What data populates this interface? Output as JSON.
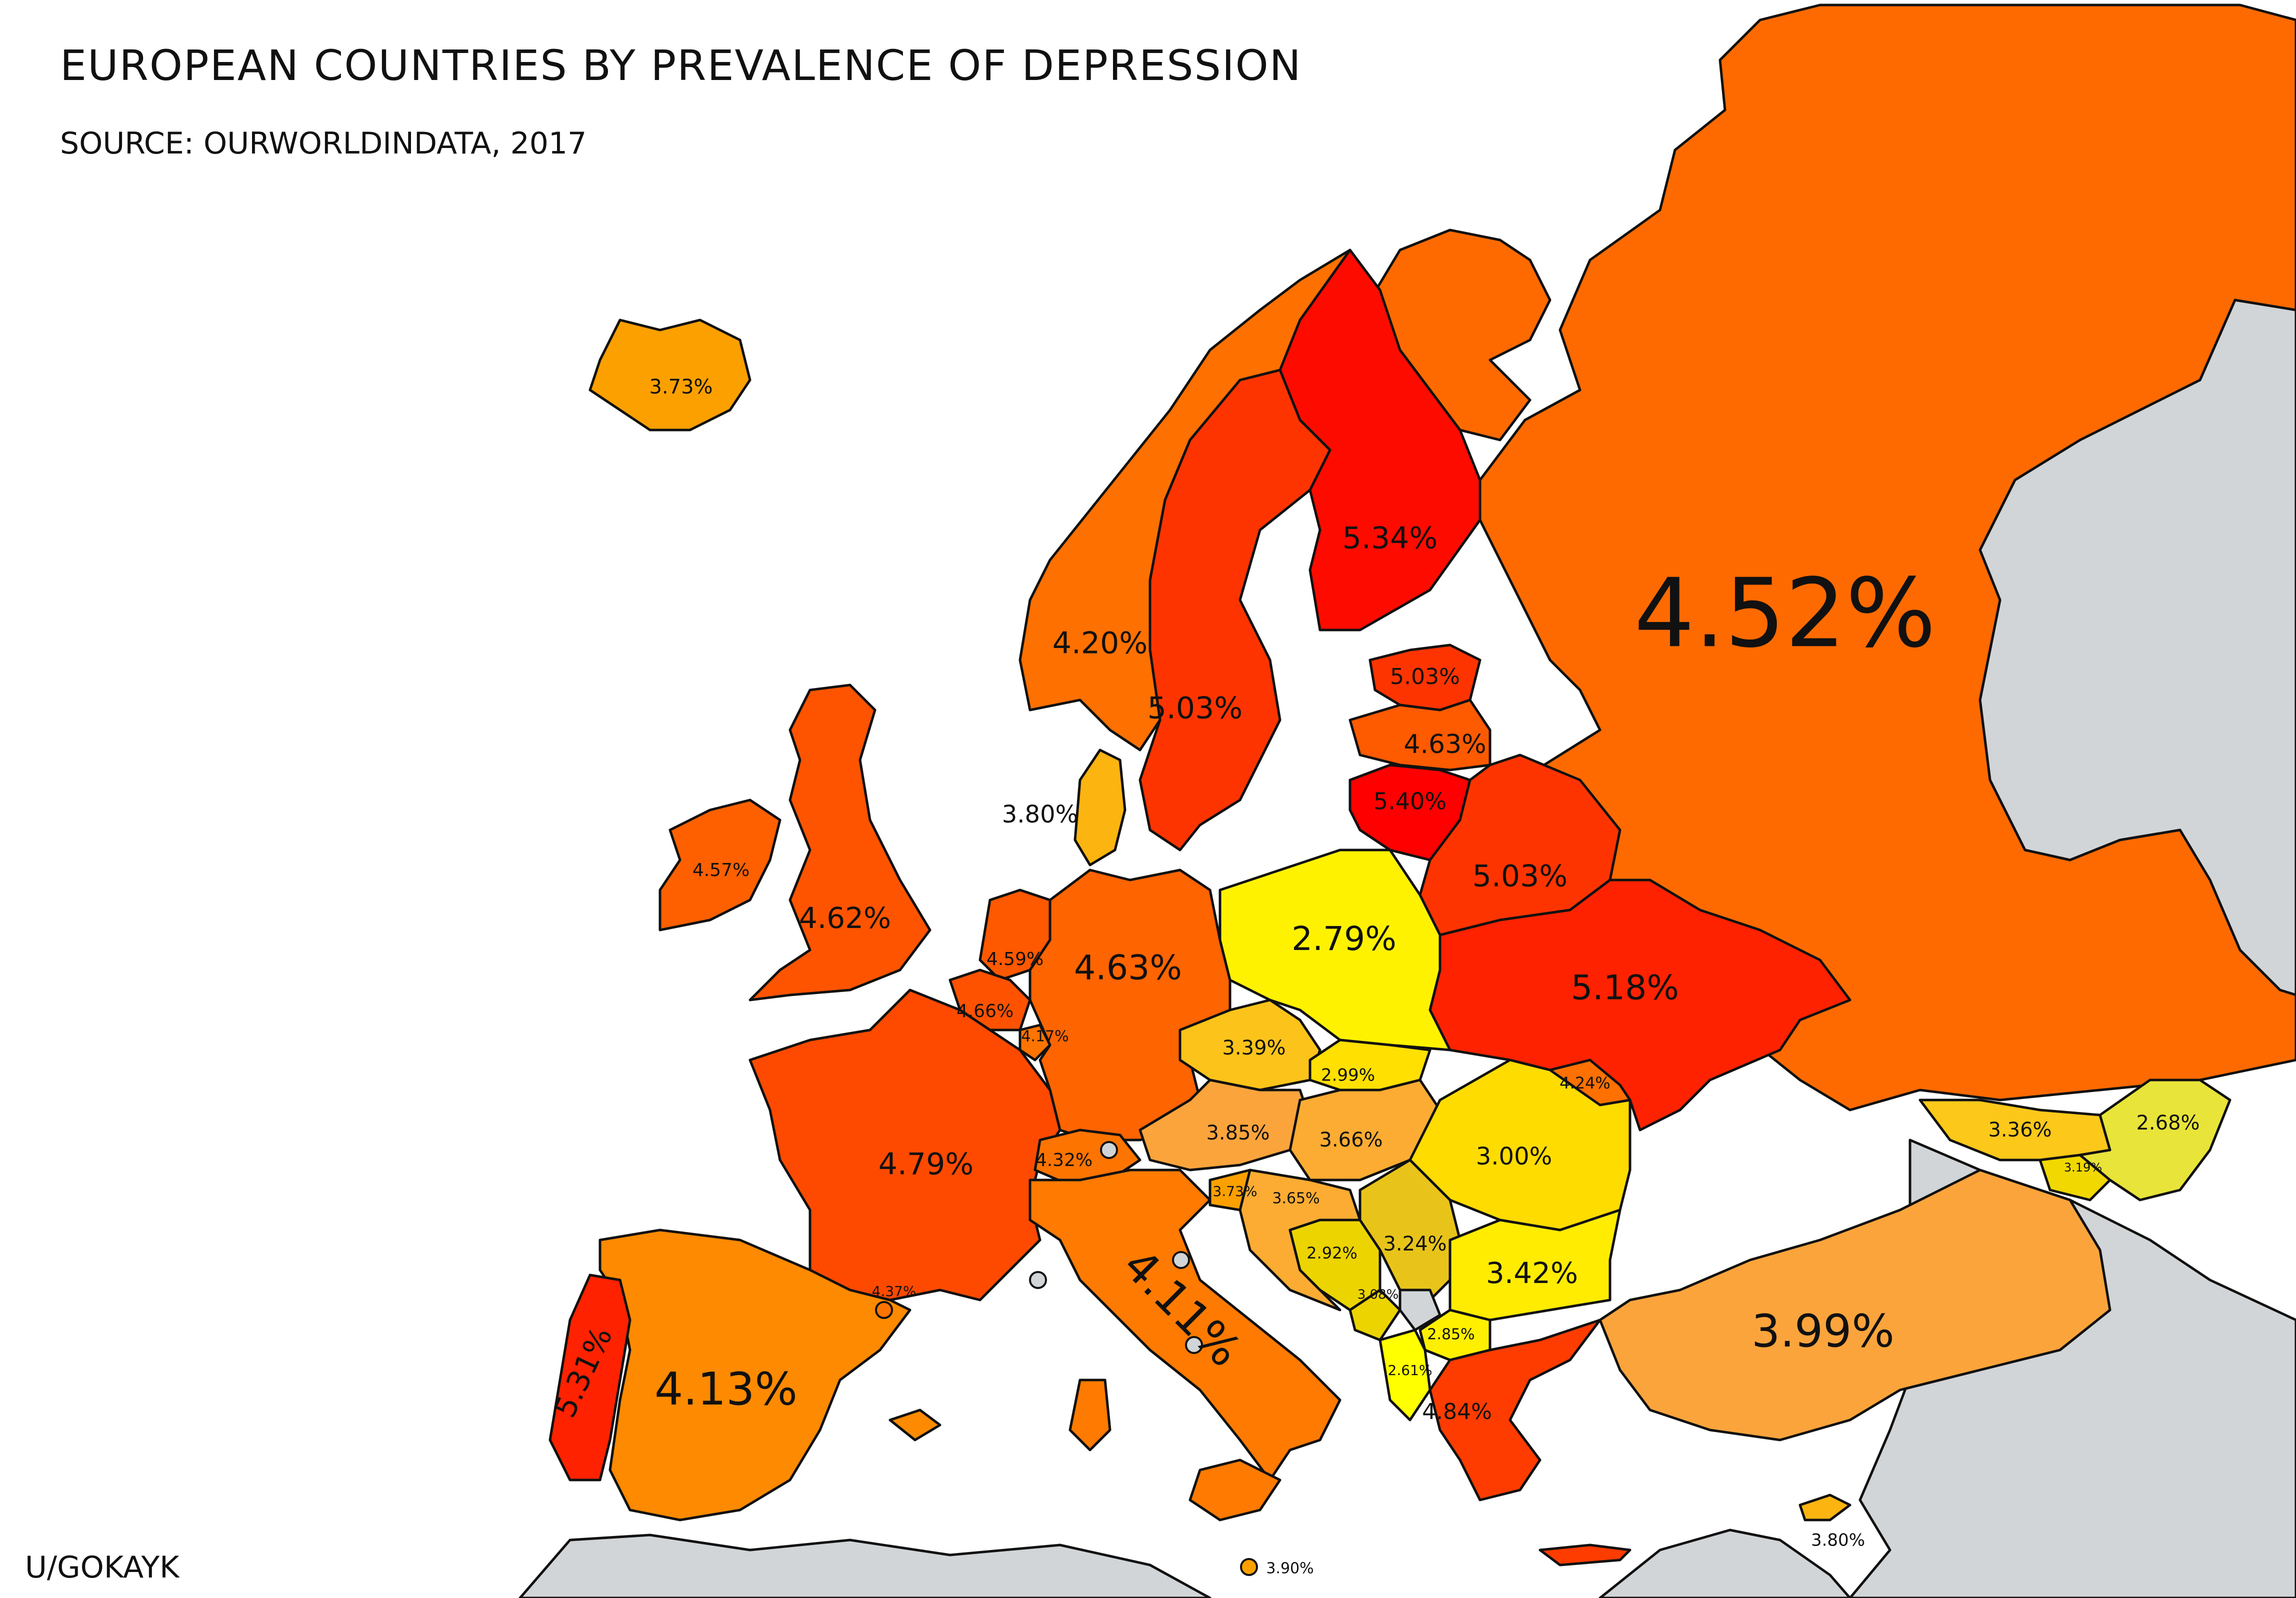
{
  "title": "EUROPEAN COUNTRIES BY PREVALENCE OF DEPRESSION",
  "subtitle": "SOURCE: OURWORLDINDATA, 2017",
  "credit": "U/GOKAYK",
  "colors": {
    "background": "#ffffff",
    "no_data": "#d1d5d8",
    "border": "#111111",
    "scale": [
      "#ffff00",
      "#ffe000",
      "#fdc41a",
      "#fca43c",
      "#fd8a00",
      "#fe6a00",
      "#fe4a00",
      "#fe2a00",
      "#fe0000"
    ]
  },
  "countries": [
    {
      "id": "russia",
      "name": "Russia",
      "value": "4.52%",
      "color": "#fe6a00"
    },
    {
      "id": "finland",
      "name": "Finland",
      "value": "5.34%",
      "color": "#fe0b00"
    },
    {
      "id": "sweden",
      "name": "Sweden",
      "value": "5.03%",
      "color": "#fe3400"
    },
    {
      "id": "norway",
      "name": "Norway",
      "value": "4.20%",
      "color": "#fe7000"
    },
    {
      "id": "iceland",
      "name": "Iceland",
      "value": "3.73%",
      "color": "#fca000"
    },
    {
      "id": "estonia",
      "name": "Estonia",
      "value": "5.03%",
      "color": "#fe3400"
    },
    {
      "id": "latvia",
      "name": "Latvia",
      "value": "4.63%",
      "color": "#fe5a00"
    },
    {
      "id": "lithuania",
      "name": "Lithuania",
      "value": "5.40%",
      "color": "#fe0000"
    },
    {
      "id": "belarus",
      "name": "Belarus",
      "value": "5.03%",
      "color": "#fe3400"
    },
    {
      "id": "ukraine",
      "name": "Ukraine",
      "value": "5.18%",
      "color": "#fe2200"
    },
    {
      "id": "denmark",
      "name": "Denmark",
      "value": "3.80%",
      "color": "#fcb410"
    },
    {
      "id": "uk",
      "name": "United Kingdom",
      "value": "4.62%",
      "color": "#fe5400"
    },
    {
      "id": "ireland",
      "name": "Ireland",
      "value": "4.57%",
      "color": "#fe6000"
    },
    {
      "id": "netherlands",
      "name": "Netherlands",
      "value": "4.59%",
      "color": "#fe5800"
    },
    {
      "id": "belgium",
      "name": "Belgium",
      "value": "4.66%",
      "color": "#fe5200"
    },
    {
      "id": "luxembourg",
      "name": "Luxembourg",
      "value": "4.17%",
      "color": "#fe7400"
    },
    {
      "id": "germany",
      "name": "Germany",
      "value": "4.63%",
      "color": "#fe6400"
    },
    {
      "id": "poland",
      "name": "Poland",
      "value": "2.79%",
      "color": "#fff200"
    },
    {
      "id": "czechia",
      "name": "Czechia",
      "value": "3.39%",
      "color": "#fcc41a"
    },
    {
      "id": "slovakia",
      "name": "Slovakia",
      "value": "2.99%",
      "color": "#ffe000"
    },
    {
      "id": "austria",
      "name": "Austria",
      "value": "3.85%",
      "color": "#fca43c"
    },
    {
      "id": "hungary",
      "name": "Hungary",
      "value": "3.66%",
      "color": "#fcac32"
    },
    {
      "id": "romania",
      "name": "Romania",
      "value": "3.00%",
      "color": "#ffdc00"
    },
    {
      "id": "moldova",
      "name": "Moldova",
      "value": "4.24%",
      "color": "#fe7000"
    },
    {
      "id": "france",
      "name": "France",
      "value": "4.79%",
      "color": "#fe4a00"
    },
    {
      "id": "switzerland",
      "name": "Switzerland",
      "value": "4.32%",
      "color": "#fe7400"
    },
    {
      "id": "italy",
      "name": "Italy",
      "value": "4.11%",
      "color": "#fe7a00"
    },
    {
      "id": "slovenia",
      "name": "Slovenia",
      "value": "3.73%",
      "color": "#fca000"
    },
    {
      "id": "croatia",
      "name": "Croatia",
      "value": "3.65%",
      "color": "#fcac32"
    },
    {
      "id": "bosnia",
      "name": "Bosnia and Herzegovina",
      "value": "2.92%",
      "color": "#ecd400"
    },
    {
      "id": "serbia",
      "name": "Serbia",
      "value": "3.24%",
      "color": "#e8c41a"
    },
    {
      "id": "montenegro",
      "name": "Montenegro",
      "value": "3.08%",
      "color": "#ecd400"
    },
    {
      "id": "kosovo",
      "name": "Kosovo",
      "value": "",
      "color": "#d1d5d8"
    },
    {
      "id": "north_macedonia",
      "name": "North Macedonia",
      "value": "2.85%",
      "color": "#fff000"
    },
    {
      "id": "albania",
      "name": "Albania",
      "value": "2.61%",
      "color": "#ffff00"
    },
    {
      "id": "bulgaria",
      "name": "Bulgaria",
      "value": "3.42%",
      "color": "#ffec00"
    },
    {
      "id": "greece",
      "name": "Greece",
      "value": "4.84%",
      "color": "#fe3c00"
    },
    {
      "id": "turkey",
      "name": "Turkey",
      "value": "3.99%",
      "color": "#fca43c"
    },
    {
      "id": "georgia",
      "name": "Georgia",
      "value": "3.36%",
      "color": "#fcc81a"
    },
    {
      "id": "armenia",
      "name": "Armenia",
      "value": "3.19%",
      "color": "#f0d800"
    },
    {
      "id": "azerbaijan",
      "name": "Azerbaijan",
      "value": "2.68%",
      "color": "#e8e43a"
    },
    {
      "id": "spain",
      "name": "Spain",
      "value": "4.13%",
      "color": "#fd8a00"
    },
    {
      "id": "portugal",
      "name": "Portugal",
      "value": "5.31%",
      "color": "#fe2200"
    },
    {
      "id": "andorra",
      "name": "Andorra",
      "value": "4.37%",
      "color": "#fe7400"
    },
    {
      "id": "malta",
      "name": "Malta",
      "value": "3.90%",
      "color": "#fca000"
    },
    {
      "id": "cyprus",
      "name": "Cyprus",
      "value": "3.80%",
      "color": "#fcb410"
    }
  ]
}
